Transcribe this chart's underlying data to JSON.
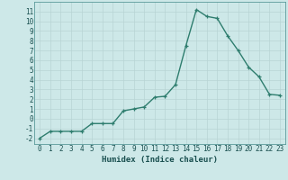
{
  "x": [
    0,
    1,
    2,
    3,
    4,
    5,
    6,
    7,
    8,
    9,
    10,
    11,
    12,
    13,
    14,
    15,
    16,
    17,
    18,
    19,
    20,
    21,
    22,
    23
  ],
  "y": [
    -2,
    -1.3,
    -1.3,
    -1.3,
    -1.3,
    -0.5,
    -0.5,
    -0.5,
    0.8,
    1.0,
    1.2,
    2.2,
    2.3,
    3.5,
    7.5,
    11.2,
    10.5,
    10.3,
    8.5,
    7.0,
    5.3,
    4.3,
    2.5,
    2.4
  ],
  "line_color": "#2e7d6e",
  "marker": "+",
  "marker_size": 3,
  "bg_color": "#cde8e8",
  "grid_color": "#b8d4d4",
  "xlabel": "Humidex (Indice chaleur)",
  "xlim": [
    -0.5,
    23.5
  ],
  "ylim": [
    -2.6,
    12.0
  ],
  "yticks": [
    -2,
    -1,
    0,
    1,
    2,
    3,
    4,
    5,
    6,
    7,
    8,
    9,
    10,
    11
  ],
  "xticks": [
    0,
    1,
    2,
    3,
    4,
    5,
    6,
    7,
    8,
    9,
    10,
    11,
    12,
    13,
    14,
    15,
    16,
    17,
    18,
    19,
    20,
    21,
    22,
    23
  ],
  "xlabel_fontsize": 6.5,
  "tick_fontsize": 5.5,
  "linewidth": 1.0
}
